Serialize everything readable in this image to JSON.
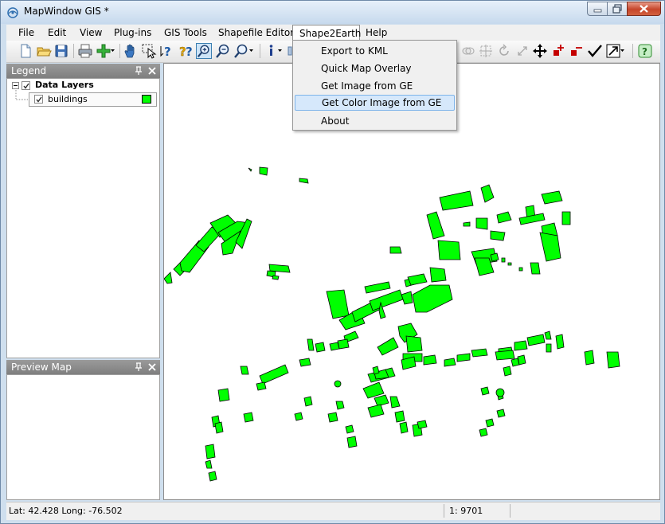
{
  "window": {
    "title": "MapWindow GIS *"
  },
  "menu": {
    "items": [
      "File",
      "Edit",
      "View",
      "Plug-ins",
      "GIS Tools",
      "Shapefile Editor",
      "Shape2Earth",
      "Help"
    ],
    "active": "Shape2Earth"
  },
  "dropdown": {
    "items": [
      "Export to KML",
      "Quick Map Overlay",
      "Get Image from GE",
      "Get Color Image from GE",
      "About"
    ],
    "highlighted": "Get Color Image from GE"
  },
  "legend": {
    "title": "Legend",
    "group_name": "Data Layers",
    "layers": [
      {
        "name": "buildings",
        "visible": true,
        "color": "#00ff00"
      }
    ]
  },
  "preview_map": {
    "title": "Preview Map"
  },
  "status": {
    "coords": "Lat: 42.428 Long: -76.502",
    "scale": "1: 9701"
  },
  "colors": {
    "feature_fill": "#00ff00",
    "feature_stroke": "#000000",
    "title_bar": "#d2e2f2",
    "highlight": "#d6e8fb"
  },
  "toolbar": {
    "icons": [
      "new-document-icon",
      "open-folder-icon",
      "save-icon",
      "print-icon",
      "add-layer-icon",
      "pan-hand-icon",
      "select-icon",
      "identify-icon",
      "identify-help-icon",
      "zoom-in-icon",
      "zoom-out-icon",
      "zoom-extent-icon",
      "info-icon",
      "shape-select-icon",
      "rotate-icon",
      "resize-icon",
      "move-icon",
      "add-vertex-icon",
      "remove-vertex-icon",
      "check-icon",
      "snap-icon",
      "help-icon"
    ]
  }
}
